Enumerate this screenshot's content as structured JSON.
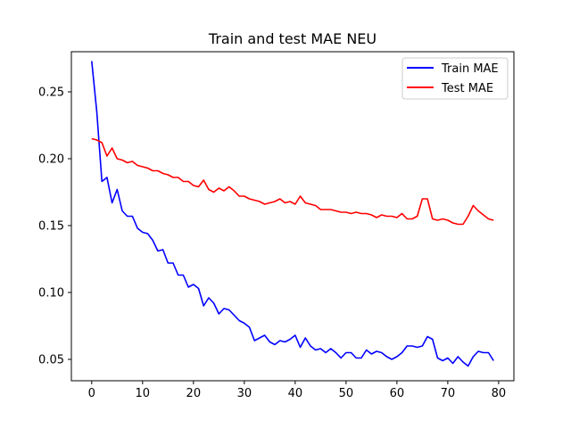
{
  "chart_data": {
    "type": "line",
    "title": "Train and test MAE NEU",
    "xlabel": "",
    "ylabel": "",
    "xlim": [
      -4,
      83
    ],
    "ylim": [
      0.034,
      0.28
    ],
    "xticks": [
      0,
      10,
      20,
      30,
      40,
      50,
      60,
      70,
      80
    ],
    "yticks": [
      0.05,
      0.1,
      0.15,
      0.2,
      0.25
    ],
    "ytick_labels": [
      "0.05",
      "0.10",
      "0.15",
      "0.20",
      "0.25"
    ],
    "grid": false,
    "legend_position": "top-right",
    "x": [
      0,
      1,
      2,
      3,
      4,
      5,
      6,
      7,
      8,
      9,
      10,
      11,
      12,
      13,
      14,
      15,
      16,
      17,
      18,
      19,
      20,
      21,
      22,
      23,
      24,
      25,
      26,
      27,
      28,
      29,
      30,
      31,
      32,
      33,
      34,
      35,
      36,
      37,
      38,
      39,
      40,
      41,
      42,
      43,
      44,
      45,
      46,
      47,
      48,
      49,
      50,
      51,
      52,
      53,
      54,
      55,
      56,
      57,
      58,
      59,
      60,
      61,
      62,
      63,
      64,
      65,
      66,
      67,
      68,
      69,
      70,
      71,
      72,
      73,
      74,
      75,
      76,
      77,
      78,
      79
    ],
    "series": [
      {
        "name": "Train MAE",
        "color": "#0000ff",
        "values": [
          0.273,
          0.235,
          0.183,
          0.186,
          0.167,
          0.177,
          0.161,
          0.157,
          0.157,
          0.148,
          0.145,
          0.144,
          0.139,
          0.131,
          0.132,
          0.122,
          0.122,
          0.113,
          0.113,
          0.104,
          0.106,
          0.103,
          0.09,
          0.096,
          0.092,
          0.084,
          0.088,
          0.087,
          0.083,
          0.079,
          0.077,
          0.074,
          0.064,
          0.066,
          0.068,
          0.063,
          0.061,
          0.064,
          0.063,
          0.065,
          0.068,
          0.059,
          0.066,
          0.06,
          0.057,
          0.058,
          0.055,
          0.058,
          0.055,
          0.051,
          0.055,
          0.055,
          0.051,
          0.051,
          0.057,
          0.054,
          0.056,
          0.055,
          0.052,
          0.05,
          0.052,
          0.055,
          0.06,
          0.06,
          0.059,
          0.06,
          0.067,
          0.065,
          0.051,
          0.049,
          0.051,
          0.047,
          0.052,
          0.048,
          0.045,
          0.052,
          0.056,
          0.055,
          0.055,
          0.049
        ]
      },
      {
        "name": "Test MAE",
        "color": "#ff0000",
        "values": [
          0.215,
          0.214,
          0.212,
          0.202,
          0.208,
          0.2,
          0.199,
          0.197,
          0.198,
          0.195,
          0.194,
          0.193,
          0.191,
          0.191,
          0.189,
          0.188,
          0.186,
          0.186,
          0.183,
          0.183,
          0.18,
          0.179,
          0.184,
          0.177,
          0.175,
          0.178,
          0.176,
          0.179,
          0.176,
          0.172,
          0.172,
          0.17,
          0.169,
          0.168,
          0.166,
          0.167,
          0.168,
          0.17,
          0.167,
          0.168,
          0.166,
          0.172,
          0.167,
          0.166,
          0.165,
          0.162,
          0.162,
          0.162,
          0.161,
          0.16,
          0.16,
          0.159,
          0.16,
          0.159,
          0.159,
          0.158,
          0.156,
          0.158,
          0.157,
          0.157,
          0.156,
          0.159,
          0.155,
          0.155,
          0.157,
          0.17,
          0.17,
          0.155,
          0.154,
          0.155,
          0.154,
          0.152,
          0.151,
          0.151,
          0.157,
          0.165,
          0.161,
          0.158,
          0.155,
          0.154
        ]
      }
    ]
  }
}
